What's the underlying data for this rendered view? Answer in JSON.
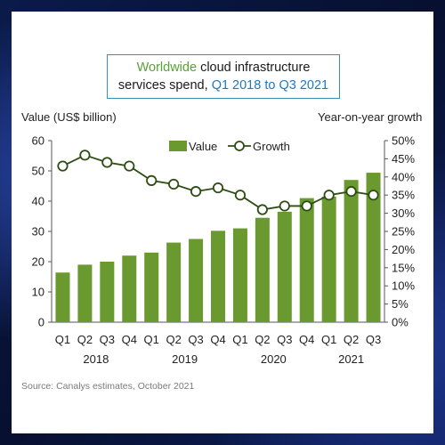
{
  "title": {
    "part1": "Worldwide",
    "part2": " cloud infrastructure",
    "part3": "services  spend, ",
    "part4": "Q1 2018 to Q3 2021"
  },
  "left_axis_title": "Value (US$ billion)",
  "right_axis_title": "Year-on-year growth",
  "source": "Source:  Canalys estimates, October 2021",
  "colors": {
    "bar": "#6a9a2f",
    "line": "#2e4d14",
    "marker_fill": "#ffffff"
  },
  "chart_data": {
    "type": "bar",
    "categories": [
      "Q1",
      "Q2",
      "Q3",
      "Q4",
      "Q1",
      "Q2",
      "Q3",
      "Q4",
      "Q1",
      "Q2",
      "Q3",
      "Q4",
      "Q1",
      "Q2",
      "Q3"
    ],
    "years": [
      {
        "label": "2018",
        "start": 0,
        "end": 3
      },
      {
        "label": "2019",
        "start": 4,
        "end": 7
      },
      {
        "label": "2020",
        "start": 8,
        "end": 11
      },
      {
        "label": "2021",
        "start": 12,
        "end": 14
      }
    ],
    "series": [
      {
        "name": "Value",
        "type": "bar",
        "axis": "left",
        "values": [
          16.4,
          19.0,
          20.0,
          22.0,
          23.0,
          26.3,
          27.5,
          30.2,
          31.0,
          34.5,
          36.5,
          41.0,
          41.5,
          47.0,
          49.4
        ]
      },
      {
        "name": "Growth",
        "type": "line",
        "axis": "right",
        "values": [
          43,
          46,
          44,
          43,
          39,
          38,
          36,
          37,
          35,
          31,
          32,
          32,
          35,
          36,
          35
        ]
      }
    ],
    "left_axis": {
      "min": 0,
      "max": 60,
      "step": 10,
      "ticks": [
        "0",
        "10",
        "20",
        "30",
        "40",
        "50",
        "60"
      ]
    },
    "right_axis": {
      "min": 0,
      "max": 50,
      "step": 5,
      "ticks": [
        "0%",
        "5%",
        "10%",
        "15%",
        "20%",
        "25%",
        "30%",
        "35%",
        "40%",
        "45%",
        "50%"
      ]
    },
    "legend_position": "top-center",
    "grid": false
  }
}
